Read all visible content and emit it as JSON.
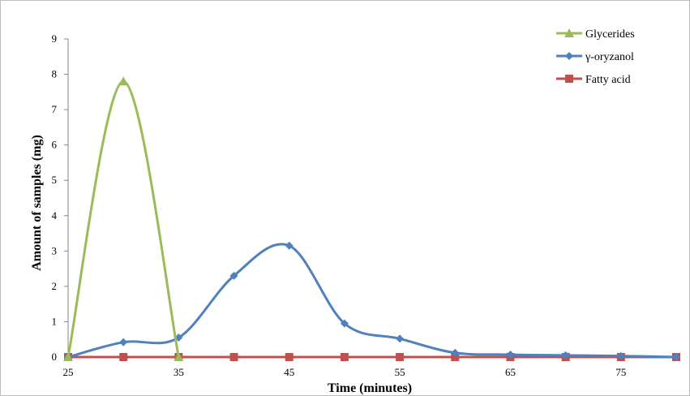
{
  "chart_data": {
    "type": "line",
    "title": "",
    "xlabel": "Time (minutes)",
    "ylabel": "Amount of samples (mg)",
    "x_ticks": [
      25,
      35,
      45,
      55,
      65,
      75
    ],
    "y_ticks": [
      0,
      1,
      2,
      3,
      4,
      5,
      6,
      7,
      8,
      9
    ],
    "xlim": [
      25,
      80
    ],
    "ylim": [
      0,
      9
    ],
    "grid": false,
    "legend_position": "top-right",
    "series": [
      {
        "name": "Glycerides",
        "color": "#9BBB59",
        "marker": "triangle",
        "x": [
          25,
          30,
          35
        ],
        "y": [
          0,
          7.8,
          0
        ]
      },
      {
        "name": "γ-oryzanol",
        "color": "#4F81BD",
        "marker": "diamond",
        "x": [
          25,
          30,
          35,
          40,
          45,
          50,
          55,
          60,
          65,
          70,
          75,
          80
        ],
        "y": [
          0,
          0.42,
          0.55,
          2.3,
          3.15,
          0.95,
          0.52,
          0.12,
          0.07,
          0.05,
          0.03,
          0
        ]
      },
      {
        "name": "Fatty acid",
        "color": "#C0504D",
        "marker": "square",
        "x": [
          25,
          30,
          35,
          40,
          45,
          50,
          55,
          60,
          65,
          70,
          75,
          80
        ],
        "y": [
          0,
          0,
          0,
          0,
          0,
          0,
          0,
          0,
          0,
          0,
          0,
          0
        ]
      }
    ]
  }
}
